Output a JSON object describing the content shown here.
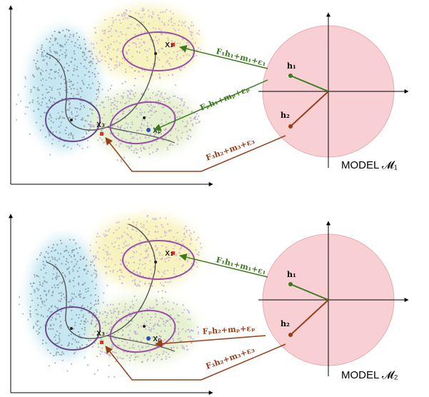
{
  "panels": [
    {
      "points": {
        "x1": "x₁",
        "xp": "xₚ",
        "x3": "x₃"
      },
      "equations": [
        "F₁h₁+m₁+ε₁",
        "Fₚh₁+mₚ+εₚ",
        "F₃h₂+m₃+ε₃"
      ],
      "latent": [
        "h₁",
        "h₂"
      ],
      "model": "MODEL 𝓜₁"
    },
    {
      "points": {
        "x1": "x₁",
        "xp": "xₚ",
        "x3": "x₃"
      },
      "equations": [
        "F₁h₁+m₁+ε₁",
        "Fₚh₂+mₚ+εₚ",
        "F₃h₂+m₃+ε₃"
      ],
      "latent": [
        "h₁",
        "h₂"
      ],
      "model": "MODEL 𝓜₂"
    }
  ]
}
